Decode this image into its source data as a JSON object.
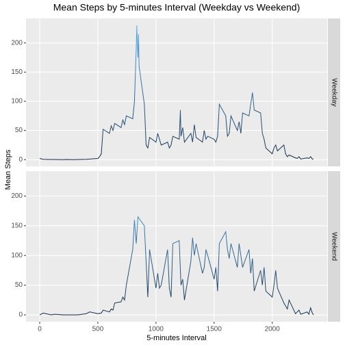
{
  "chart_data": {
    "type": "line",
    "title": "Mean Steps by 5-minutes Interval (Weekday vs Weekend)",
    "xlabel": "5-minutes Interval",
    "ylabel": "Mean Steps",
    "xlim": [
      -117.75,
      2472.75
    ],
    "xticks": [
      0,
      500,
      1000,
      1500,
      2000
    ],
    "ylim": [
      -11.5,
      241.9
    ],
    "yticks": [
      0,
      50,
      100,
      150,
      200
    ],
    "grid": true,
    "color_low": "#132b43",
    "color_high": "#56b1f7",
    "panels": [
      {
        "strip": "Weekday",
        "x": [
          0,
          30,
          100,
          130,
          200,
          230,
          300,
          330,
          400,
          430,
          500,
          515,
          530,
          545,
          600,
          615,
          630,
          645,
          700,
          715,
          730,
          745,
          800,
          815,
          830,
          835,
          840,
          845,
          850,
          855,
          900,
          910,
          915,
          930,
          945,
          1000,
          1015,
          1030,
          1045,
          1100,
          1115,
          1130,
          1145,
          1200,
          1210,
          1215,
          1230,
          1245,
          1300,
          1315,
          1330,
          1345,
          1400,
          1415,
          1430,
          1445,
          1500,
          1515,
          1530,
          1545,
          1600,
          1615,
          1630,
          1645,
          1700,
          1715,
          1730,
          1745,
          1800,
          1815,
          1830,
          1845,
          1900,
          1915,
          1930,
          1945,
          2000,
          2015,
          2030,
          2045,
          2100,
          2115,
          2130,
          2145,
          2200,
          2215,
          2230,
          2245,
          2300,
          2315,
          2330,
          2345,
          2355
        ],
        "values": [
          2,
          0.5,
          0.3,
          0.2,
          0,
          0.2,
          0,
          0.3,
          0.5,
          1,
          2,
          5,
          10,
          52,
          45,
          58,
          50,
          62,
          55,
          68,
          60,
          75,
          70,
          100,
          190,
          230,
          200,
          175,
          215,
          160,
          95,
          50,
          25,
          20,
          38,
          30,
          45,
          35,
          25,
          30,
          20,
          25,
          40,
          35,
          85,
          40,
          55,
          30,
          45,
          30,
          60,
          38,
          30,
          50,
          35,
          40,
          35,
          30,
          40,
          95,
          75,
          40,
          45,
          75,
          50,
          65,
          45,
          80,
          75,
          95,
          115,
          85,
          80,
          45,
          35,
          20,
          10,
          20,
          25,
          15,
          25,
          10,
          5,
          8,
          3,
          2,
          5,
          1,
          3,
          2,
          5,
          1,
          1
        ]
      },
      {
        "strip": "Weekend",
        "x": [
          0,
          30,
          100,
          130,
          200,
          230,
          300,
          330,
          400,
          430,
          500,
          530,
          545,
          600,
          615,
          630,
          645,
          700,
          715,
          730,
          745,
          800,
          815,
          830,
          845,
          900,
          915,
          930,
          945,
          1000,
          1015,
          1030,
          1045,
          1100,
          1115,
          1130,
          1145,
          1200,
          1215,
          1230,
          1245,
          1300,
          1315,
          1330,
          1345,
          1400,
          1415,
          1430,
          1445,
          1500,
          1515,
          1530,
          1545,
          1600,
          1615,
          1630,
          1645,
          1700,
          1715,
          1730,
          1745,
          1800,
          1815,
          1830,
          1845,
          1900,
          1915,
          1930,
          1945,
          2000,
          2015,
          2030,
          2045,
          2100,
          2115,
          2130,
          2145,
          2200,
          2215,
          2230,
          2245,
          2300,
          2315,
          2330,
          2345,
          2355
        ],
        "values": [
          0,
          3,
          0,
          1,
          0,
          0,
          0,
          0,
          2,
          5,
          2,
          3,
          8,
          5,
          10,
          8,
          20,
          22,
          30,
          25,
          50,
          110,
          160,
          120,
          165,
          150,
          90,
          30,
          110,
          45,
          70,
          45,
          50,
          110,
          45,
          30,
          120,
          125,
          50,
          60,
          25,
          90,
          130,
          100,
          120,
          70,
          80,
          110,
          100,
          60,
          80,
          40,
          120,
          140,
          110,
          95,
          120,
          80,
          120,
          100,
          80,
          110,
          70,
          95,
          40,
          75,
          50,
          80,
          40,
          30,
          50,
          75,
          45,
          20,
          15,
          10,
          25,
          2,
          5,
          8,
          1,
          5,
          1,
          12,
          3,
          0
        ]
      }
    ]
  }
}
